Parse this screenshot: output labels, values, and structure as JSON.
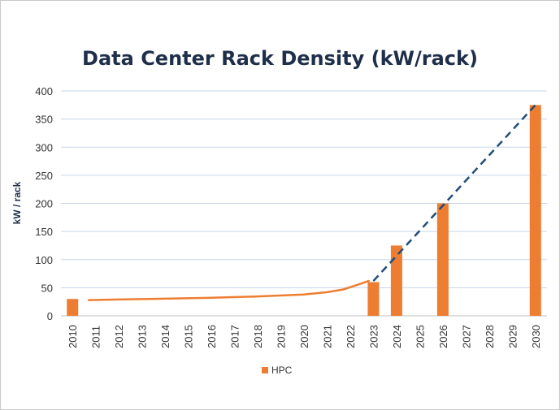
{
  "chart_data": {
    "type": "bar",
    "title": "Data Center Rack Density (kW/rack)",
    "xlabel": "",
    "ylabel": "kW / rack",
    "ylim": [
      0,
      400
    ],
    "yticks": [
      0,
      50,
      100,
      150,
      200,
      250,
      300,
      350,
      400
    ],
    "categories": [
      "2010",
      "2011",
      "2012",
      "2013",
      "2014",
      "2015",
      "2016",
      "2017",
      "2018",
      "2019",
      "2020",
      "2021",
      "2022",
      "2023",
      "2024",
      "2025",
      "2026",
      "2027",
      "2028",
      "2029",
      "2030"
    ],
    "series": [
      {
        "name": "HPC",
        "color": "#ed7d31",
        "values": [
          30,
          null,
          null,
          null,
          null,
          null,
          null,
          null,
          null,
          null,
          null,
          null,
          null,
          60,
          125,
          null,
          200,
          null,
          null,
          null,
          375
        ]
      }
    ],
    "trend_line": {
      "color": "#ed7d31",
      "style": "solid",
      "points": [
        [
          2010.7,
          28
        ],
        [
          2012,
          29
        ],
        [
          2014,
          30.5
        ],
        [
          2016,
          32
        ],
        [
          2018,
          34.5
        ],
        [
          2020,
          38
        ],
        [
          2021,
          42
        ],
        [
          2021.7,
          47
        ],
        [
          2022.3,
          55
        ],
        [
          2022.8,
          62
        ]
      ]
    },
    "projection_line": {
      "color": "#1f4e79",
      "style": "dashed",
      "points": [
        [
          2023,
          62
        ],
        [
          2030,
          375
        ]
      ]
    },
    "grid": true,
    "legend": "bottom"
  }
}
